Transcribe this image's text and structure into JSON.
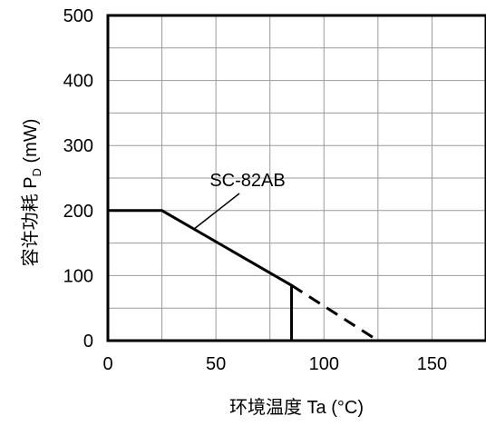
{
  "chart_data": {
    "type": "line",
    "xlabel": "环境温度  Ta (°C)",
    "ylabel_main": "容许功耗 P",
    "ylabel_sub": "D",
    "ylabel_unit": " (mW)",
    "xlim": [
      0,
      175
    ],
    "ylim": [
      0,
      500
    ],
    "x_ticks": [
      0,
      50,
      100,
      150
    ],
    "x_tick_labels": [
      "0",
      "50",
      "100",
      "150"
    ],
    "y_ticks": [
      0,
      100,
      200,
      300,
      400,
      500
    ],
    "y_tick_labels": [
      "0",
      "100",
      "200",
      "300",
      "400",
      "500"
    ],
    "grid": true,
    "series": [
      {
        "name": "SC-82AB",
        "solid": [
          [
            0,
            200
          ],
          [
            25,
            200
          ],
          [
            85,
            85
          ],
          [
            85,
            0
          ]
        ],
        "dashed": [
          [
            85,
            85
          ],
          [
            125,
            0
          ]
        ]
      }
    ],
    "annotation": {
      "text": "SC-82AB",
      "points_to": [
        40,
        172
      ]
    }
  }
}
